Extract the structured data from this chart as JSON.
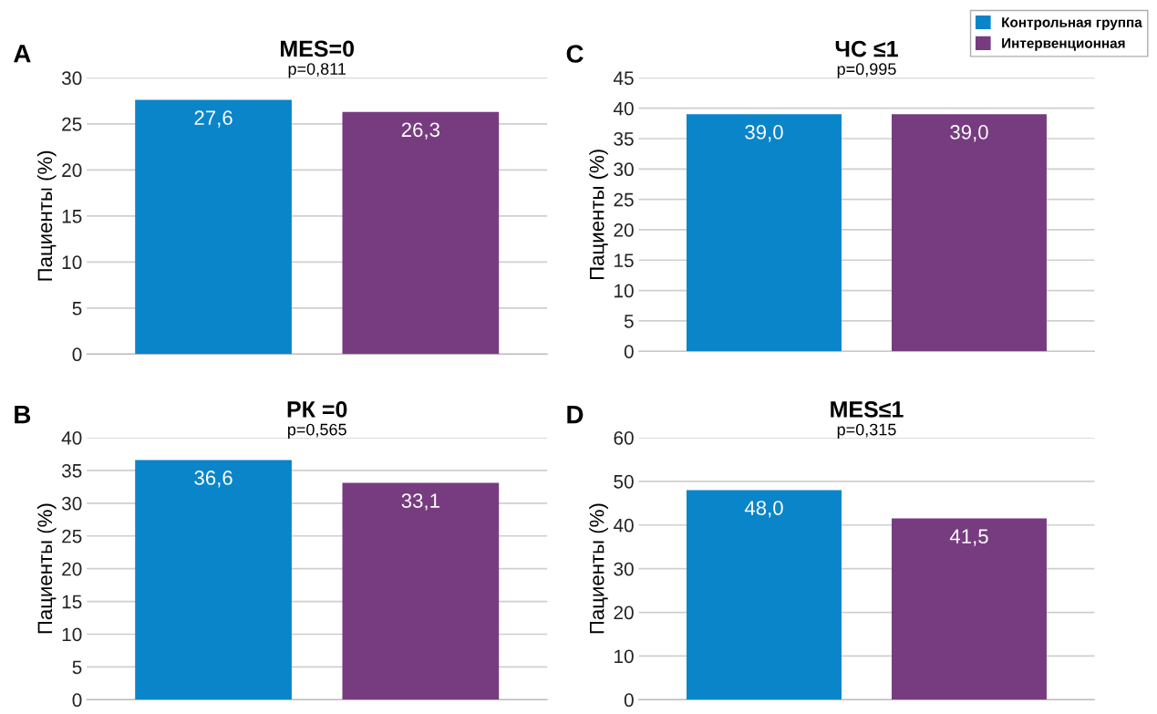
{
  "chart_data": [
    {
      "type": "bar",
      "title": "MES=0",
      "subtitle": "p=0,811",
      "ylabel": "Пациенты (%)",
      "annotations": [
        "A"
      ],
      "categories": [
        null
      ],
      "ylim": [
        0,
        30
      ],
      "yticks": [
        0,
        5,
        10,
        15,
        20,
        25,
        30
      ],
      "grid": "y",
      "legend": "top right",
      "series": [
        {
          "name": "Контрольная группа",
          "color": "#0a85c9",
          "values": [
            27.6
          ],
          "value_labels": [
            "27,6"
          ]
        },
        {
          "name": "Интервенционная",
          "color": "#773c80",
          "values": [
            26.3
          ],
          "value_labels": [
            "26,3"
          ]
        }
      ]
    },
    {
      "type": "bar",
      "title": "ЧС ≤1",
      "subtitle": "p=0,995",
      "ylabel": "Пациенты (%)",
      "annotations": [
        "C"
      ],
      "categories": [
        null
      ],
      "ylim": [
        0,
        45
      ],
      "yticks": [
        0,
        5,
        10,
        15,
        20,
        25,
        30,
        35,
        40,
        45
      ],
      "grid": "y",
      "legend": "top right",
      "series": [
        {
          "name": "Контрольная группа",
          "color": "#0a85c9",
          "values": [
            39.0
          ],
          "value_labels": [
            "39,0"
          ]
        },
        {
          "name": "Интервенционная",
          "color": "#773c80",
          "values": [
            39.0
          ],
          "value_labels": [
            "39,0"
          ]
        }
      ]
    },
    {
      "type": "bar",
      "title": "РК =0",
      "subtitle": "p=0,565",
      "ylabel": "Пациенты (%)",
      "annotations": [
        "B"
      ],
      "categories": [
        null
      ],
      "ylim": [
        0,
        40
      ],
      "yticks": [
        0,
        5,
        10,
        15,
        20,
        25,
        30,
        35,
        40
      ],
      "grid": "y",
      "legend": "top right",
      "series": [
        {
          "name": "Контрольная группа",
          "color": "#0a85c9",
          "values": [
            36.6
          ],
          "value_labels": [
            "36,6"
          ]
        },
        {
          "name": "Интервенционная",
          "color": "#773c80",
          "values": [
            33.1
          ],
          "value_labels": [
            "33,1"
          ]
        }
      ]
    },
    {
      "type": "bar",
      "title": "MES≤1",
      "subtitle": "p=0,315",
      "ylabel": "Пациенты (%)",
      "annotations": [
        "D"
      ],
      "categories": [
        null
      ],
      "ylim": [
        0,
        60
      ],
      "yticks": [
        0,
        10,
        20,
        30,
        40,
        50,
        60
      ],
      "grid": "y",
      "legend": "top right",
      "series": [
        {
          "name": "Контрольная группа",
          "color": "#0a85c9",
          "values": [
            48.0
          ],
          "value_labels": [
            "48,0"
          ]
        },
        {
          "name": "Интервенционная",
          "color": "#773c80",
          "values": [
            41.5
          ],
          "value_labels": [
            "41,5"
          ]
        }
      ]
    }
  ]
}
